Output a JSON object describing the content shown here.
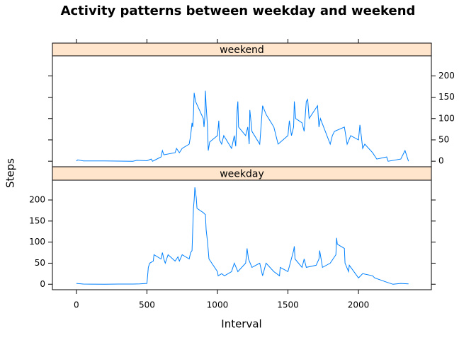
{
  "chart_data": {
    "type": "line",
    "title": "Activity patterns between weekday and weekend",
    "xlabel": "Interval",
    "ylabel": "Steps",
    "xlim": [
      -170,
      2517
    ],
    "xticks": [
      0,
      500,
      1000,
      1500,
      2000
    ],
    "ylim": [
      -13,
      247
    ],
    "yticks": [
      0,
      50,
      100,
      150,
      200
    ],
    "series": [
      {
        "name": "weekend",
        "color": "#0080ff",
        "x": [
          0,
          10,
          50,
          200,
          400,
          430,
          500,
          530,
          540,
          600,
          610,
          620,
          700,
          710,
          730,
          750,
          800,
          810,
          820,
          825,
          830,
          835,
          845,
          900,
          905,
          910,
          915,
          920,
          930,
          935,
          945,
          1000,
          1010,
          1015,
          1030,
          1045,
          1100,
          1120,
          1130,
          1140,
          1145,
          1150,
          1200,
          1215,
          1225,
          1230,
          1245,
          1300,
          1320,
          1345,
          1400,
          1415,
          1430,
          1500,
          1510,
          1525,
          1540,
          1545,
          1555,
          1600,
          1615,
          1630,
          1640,
          1650,
          1710,
          1720,
          1730,
          1800,
          1815,
          1830,
          1900,
          1920,
          1945,
          2000,
          2010,
          2020,
          2030,
          2045,
          2100,
          2130,
          2200,
          2210,
          2300,
          2330,
          2355
        ],
        "values": [
          0.5,
          3,
          0.5,
          0.5,
          0,
          2,
          1,
          5,
          0,
          10,
          25,
          15,
          20,
          30,
          20,
          30,
          40,
          60,
          90,
          80,
          110,
          160,
          140,
          100,
          80,
          100,
          165,
          130,
          80,
          25,
          45,
          60,
          95,
          50,
          40,
          60,
          30,
          60,
          35,
          120,
          140,
          80,
          60,
          80,
          40,
          120,
          70,
          40,
          130,
          110,
          80,
          60,
          40,
          60,
          95,
          60,
          80,
          140,
          100,
          90,
          70,
          140,
          145,
          100,
          130,
          80,
          100,
          40,
          60,
          70,
          80,
          40,
          60,
          50,
          85,
          60,
          30,
          40,
          20,
          5,
          10,
          0,
          5,
          25,
          0
        ]
      },
      {
        "name": "weekday",
        "color": "#0080ff",
        "x": [
          0,
          50,
          100,
          200,
          300,
          400,
          450,
          500,
          505,
          510,
          520,
          545,
          550,
          600,
          610,
          620,
          630,
          650,
          700,
          720,
          730,
          750,
          800,
          810,
          820,
          830,
          835,
          840,
          850,
          855,
          900,
          915,
          920,
          930,
          940,
          1000,
          1005,
          1030,
          1050,
          1100,
          1120,
          1145,
          1200,
          1210,
          1220,
          1245,
          1300,
          1320,
          1345,
          1400,
          1440,
          1445,
          1500,
          1540,
          1545,
          1550,
          1600,
          1615,
          1630,
          1700,
          1720,
          1725,
          1745,
          1800,
          1840,
          1845,
          1850,
          1900,
          1905,
          1930,
          1935,
          2000,
          2030,
          2100,
          2115,
          2200,
          2245,
          2300,
          2355
        ],
        "values": [
          2,
          0.5,
          0.3,
          0,
          0.5,
          0.5,
          1,
          2,
          20,
          40,
          50,
          55,
          70,
          60,
          75,
          60,
          50,
          70,
          55,
          65,
          55,
          70,
          60,
          75,
          80,
          180,
          200,
          230,
          205,
          180,
          170,
          165,
          130,
          100,
          60,
          30,
          20,
          25,
          20,
          30,
          50,
          30,
          50,
          85,
          60,
          40,
          50,
          20,
          50,
          30,
          20,
          40,
          30,
          80,
          90,
          60,
          40,
          60,
          40,
          45,
          60,
          80,
          40,
          50,
          70,
          110,
          95,
          85,
          50,
          30,
          45,
          15,
          25,
          20,
          15,
          5,
          0,
          2,
          1
        ]
      }
    ]
  }
}
